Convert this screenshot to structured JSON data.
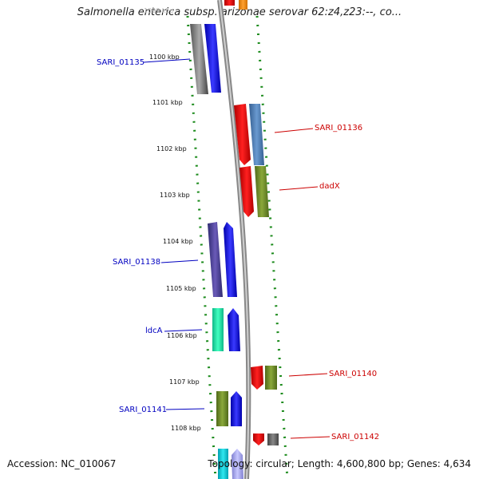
{
  "title": "Salmonella enterica subsp. arizonae serovar 62:z4,z23:--, co...",
  "accession": "Accession: NC_010067",
  "topology": "Topology: circular; Length: 4,600,800 bp; Genes: 4,634",
  "top_tick": "1099 kbp",
  "ticks": [
    "1100 kbp",
    "1101 kbp",
    "1102 kbp",
    "1103 kbp",
    "1104 kbp",
    "1105 kbp",
    "1106 kbp",
    "1107 kbp",
    "1108 kbp"
  ],
  "genes": [
    {
      "name": "SARI_01135",
      "strand": "minus",
      "color": "#0000c0"
    },
    {
      "name": "SARI_01136",
      "strand": "plus",
      "color": "#cc0000"
    },
    {
      "name": "dadX",
      "strand": "plus",
      "color": "#cc0000"
    },
    {
      "name": "SARI_01138",
      "strand": "minus",
      "color": "#0000c0"
    },
    {
      "name": "ldcA",
      "strand": "minus",
      "color": "#0000c0"
    },
    {
      "name": "SARI_01140",
      "strand": "plus",
      "color": "#cc0000"
    },
    {
      "name": "SARI_01141",
      "strand": "minus",
      "color": "#0000c0"
    },
    {
      "name": "SARI_01142",
      "strand": "plus",
      "color": "#cc0000"
    }
  ],
  "colors": {
    "plus_strand": "#ff0000",
    "minus_strand": "#0000ff",
    "backbone": "#888888",
    "dots": "#1a8a1a"
  }
}
